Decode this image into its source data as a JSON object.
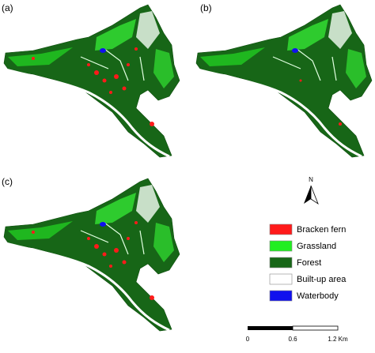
{
  "panels": [
    {
      "label": "(a)"
    },
    {
      "label": "(b)"
    },
    {
      "label": "(c)"
    }
  ],
  "north_arrow": "N",
  "legend": [
    {
      "label": "Bracken fern",
      "color": "#ff1a1a"
    },
    {
      "label": "Grassland",
      "color": "#22ee22"
    },
    {
      "label": "Forest",
      "color": "#176617"
    },
    {
      "label": "Built-up area",
      "color": "#ffffff"
    },
    {
      "label": "Waterbody",
      "color": "#1010ee"
    }
  ],
  "scale_bar": {
    "labels": [
      "0",
      "0.6",
      "1.2 Km"
    ]
  }
}
